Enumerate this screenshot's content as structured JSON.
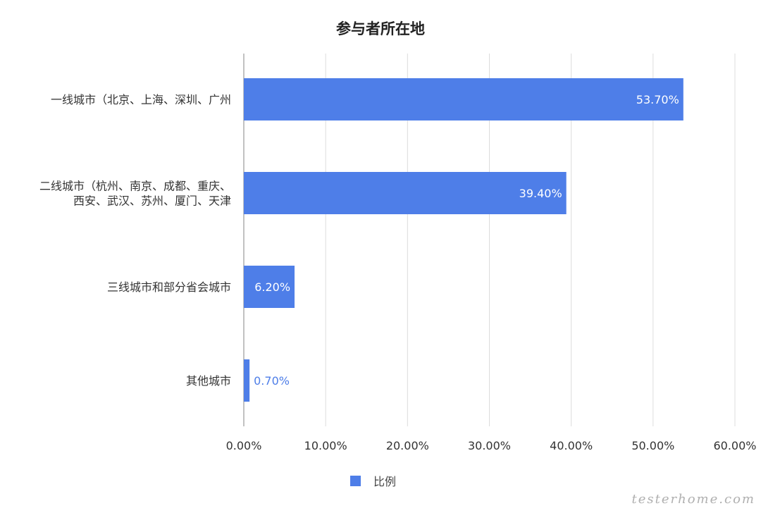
{
  "chart_data": {
    "type": "bar",
    "orientation": "horizontal",
    "title": "参与者所在地",
    "categories": [
      [
        "一线城市（北京、上海、深圳、广州"
      ],
      [
        "二线城市（杭州、南京、成都、重庆、",
        "西安、武汉、苏州、厦门、天津"
      ],
      [
        "三线城市和部分省会城市"
      ],
      [
        "其他城市"
      ]
    ],
    "series": [
      {
        "name": "比例",
        "values": [
          53.7,
          39.4,
          6.2,
          0.7
        ]
      }
    ],
    "value_labels": [
      "53.70%",
      "39.40%",
      "6.20%",
      "0.70%"
    ],
    "x_ticks": [
      "0.00%",
      "10.00%",
      "20.00%",
      "30.00%",
      "40.00%",
      "50.00%",
      "60.00%"
    ],
    "xlim": [
      0,
      60
    ],
    "grid": true,
    "legend_position": "bottom",
    "colors": {
      "bar": "#4e7ee8",
      "label_inside": "#ffffff",
      "label_outside": "#4e7ee8",
      "grid": "#dcdcdc",
      "axis": "#999999"
    }
  },
  "watermark": "testerhome.com"
}
